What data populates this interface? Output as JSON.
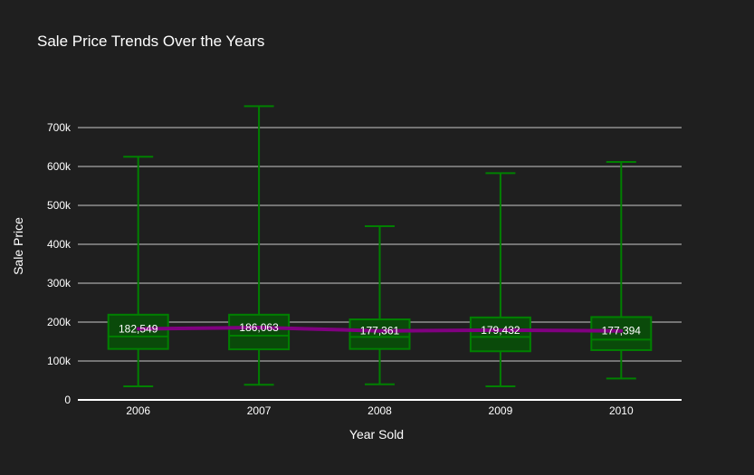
{
  "chart_data": {
    "type": "box",
    "title": "Sale Price Trends Over the Years",
    "xlabel": "Year Sold",
    "ylabel": "Sale Price",
    "ylim": [
      0,
      800000
    ],
    "yticks": [
      0,
      100000,
      200000,
      300000,
      400000,
      500000,
      600000,
      700000
    ],
    "ytick_labels": [
      "0",
      "100k",
      "200k",
      "300k",
      "400k",
      "500k",
      "600k",
      "700k"
    ],
    "grid": true,
    "legend": "none",
    "categories": [
      "2006",
      "2007",
      "2008",
      "2009",
      "2010"
    ],
    "box_series": {
      "color": "#008000",
      "fill": "#0a4a0a",
      "boxes": [
        {
          "x": "2006",
          "min": 35000,
          "q1": 131000,
          "median": 163000,
          "q3": 219000,
          "max": 625000
        },
        {
          "x": "2007",
          "min": 39000,
          "q1": 130000,
          "median": 165000,
          "q3": 219000,
          "max": 755000
        },
        {
          "x": "2008",
          "min": 40000,
          "q1": 131000,
          "median": 162000,
          "q3": 207000,
          "max": 446500
        },
        {
          "x": "2009",
          "min": 34900,
          "q1": 125000,
          "median": 162000,
          "q3": 212000,
          "max": 582933
        },
        {
          "x": "2010",
          "min": 55000,
          "q1": 128000,
          "median": 155000,
          "q3": 213000,
          "max": 611657
        }
      ]
    },
    "mean_series": {
      "color": "#800080",
      "values": [
        182549,
        186063,
        177361,
        179432,
        177394
      ],
      "labels": [
        "182,549",
        "186,063",
        "177,361",
        "179,432",
        "177,394"
      ]
    }
  }
}
